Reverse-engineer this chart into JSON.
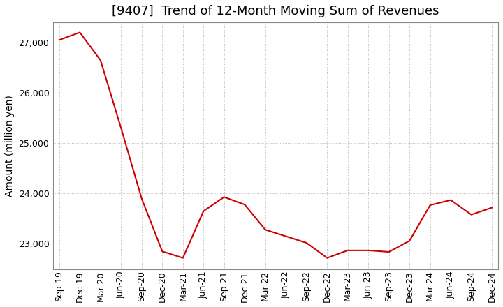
{
  "title": "[9407]  Trend of 12-Month Moving Sum of Revenues",
  "ylabel": "Amount (million yen)",
  "line_color": "#cc0000",
  "background_color": "#ffffff",
  "grid_color": "#aaaaaa",
  "x_labels": [
    "Sep-19",
    "Dec-19",
    "Mar-20",
    "Jun-20",
    "Sep-20",
    "Dec-20",
    "Mar-21",
    "Jun-21",
    "Sep-21",
    "Dec-21",
    "Mar-22",
    "Jun-22",
    "Sep-22",
    "Dec-22",
    "Mar-23",
    "Jun-23",
    "Sep-23",
    "Dec-23",
    "Mar-24",
    "Jun-24",
    "Sep-24",
    "Dec-24"
  ],
  "values": [
    27050,
    27200,
    26650,
    25300,
    23900,
    22850,
    22720,
    23650,
    23930,
    23780,
    23280,
    23150,
    23020,
    22720,
    22870,
    22870,
    22840,
    23060,
    23770,
    23870,
    23580,
    23720
  ],
  "ylim": [
    22500,
    27400
  ],
  "yticks": [
    23000,
    24000,
    25000,
    26000,
    27000
  ],
  "title_fontsize": 13,
  "ylabel_fontsize": 10,
  "tick_fontsize": 9
}
